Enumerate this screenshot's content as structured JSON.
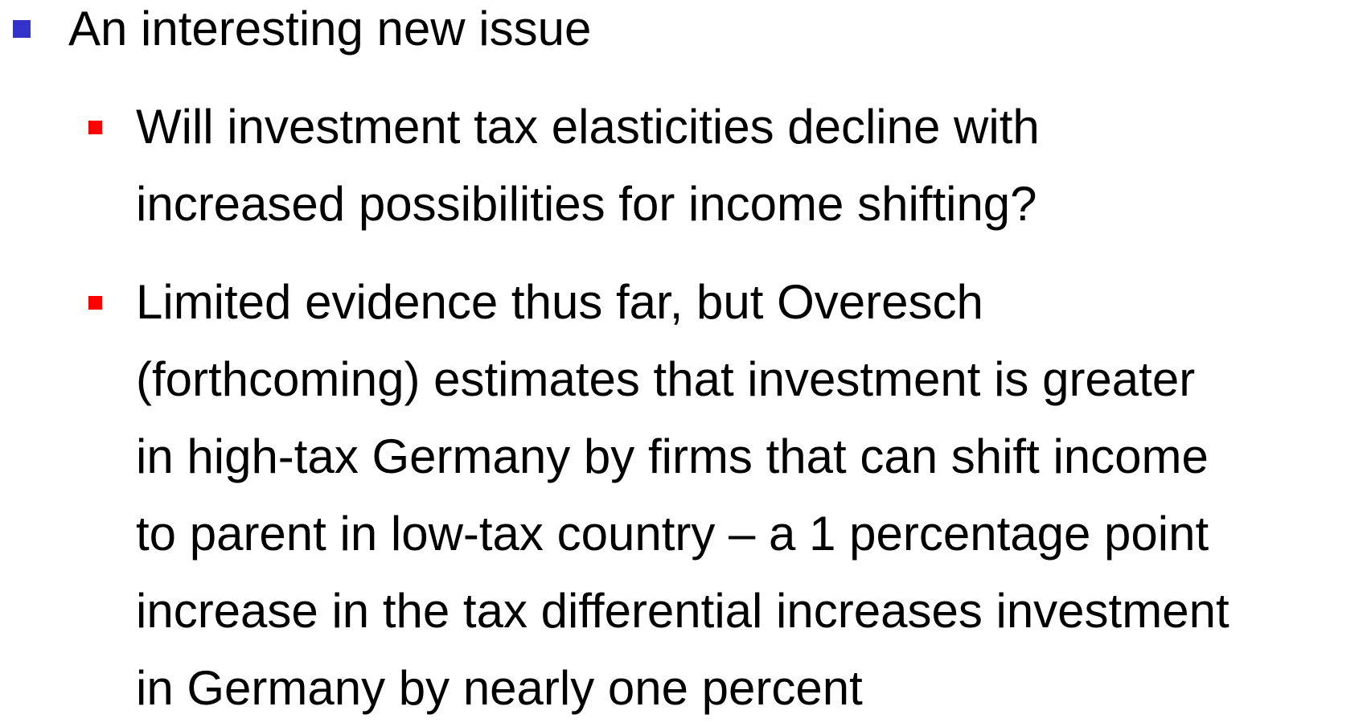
{
  "bullets": [
    {
      "text": "An interesting new issue",
      "children": [
        {
          "lines": [
            "Will investment tax elasticities decline with",
            "increased possibilities for income shifting?"
          ]
        },
        {
          "lines": [
            "Limited evidence thus far, but Overesch",
            "(forthcoming) estimates that investment is greater",
            "in high-tax Germany by firms that can shift income",
            "to parent in low-tax country – a 1 percentage point",
            "increase in the tax differential increases investment",
            "in Germany by nearly one percent"
          ]
        }
      ]
    }
  ]
}
